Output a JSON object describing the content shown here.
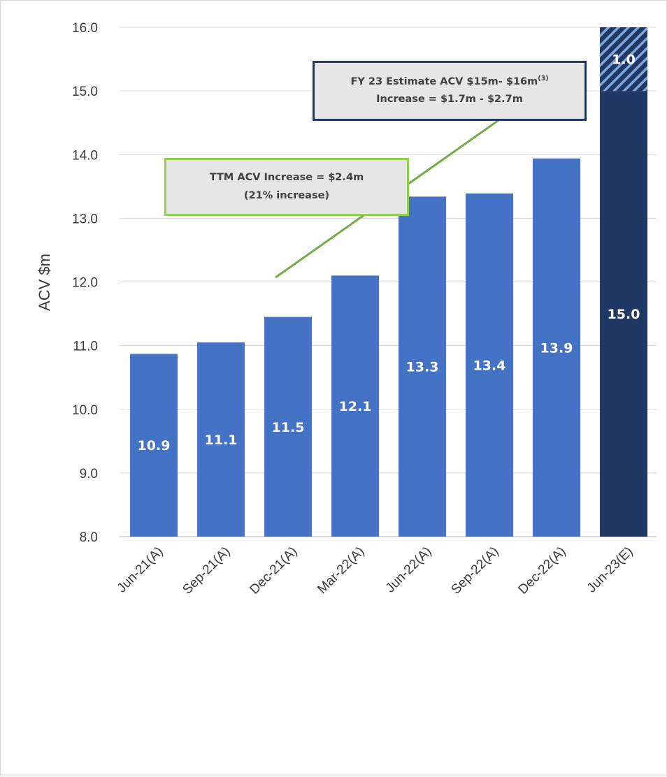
{
  "chart_data": {
    "type": "bar",
    "categories": [
      "Jun-21(A)",
      "Sep-21(A)",
      "Dec-21(A)",
      "Mar-22(A)",
      "Jun-22(A)",
      "Sep-22(A)",
      "Dec-22(A)",
      "Jun-23(E)"
    ],
    "values": [
      10.87,
      11.05,
      11.45,
      12.1,
      13.34,
      13.39,
      13.94,
      15.0
    ],
    "data_labels": [
      "10.9",
      "11.1",
      "11.5",
      "12.1",
      "13.3",
      "13.4",
      "13.9",
      "15.0"
    ],
    "estimate_increment": {
      "category": "Jun-23(E)",
      "value": 1.0,
      "label": "1.0"
    },
    "ylabel": "ACV $m",
    "ylim": [
      8.0,
      16.0
    ],
    "yticks": [
      "8.0",
      "9.0",
      "10.0",
      "11.0",
      "12.0",
      "13.0",
      "14.0",
      "15.0",
      "16.0"
    ],
    "grid": true,
    "trend_line": {
      "x_start": "Dec-21(A)",
      "y_start": 12.07,
      "x_end": "Dec-22(A)",
      "y_end": 14.6
    },
    "annotations": {
      "estimate": {
        "line1_main": "FY 23 Estimate ACV $15m- $16m",
        "line1_sup": "(3)",
        "line2": "Increase = $1.7m - $2.7m"
      },
      "ttm": {
        "line1": "TTM ACV Increase = $2.4m",
        "line2": "(21% increase)"
      }
    },
    "colors": {
      "actual": "#4472c4",
      "estimate": "#1f3864",
      "estimate_hatch": "#7fa7e0",
      "trend": "#70ad47",
      "grid": "#d9d9d9"
    }
  }
}
